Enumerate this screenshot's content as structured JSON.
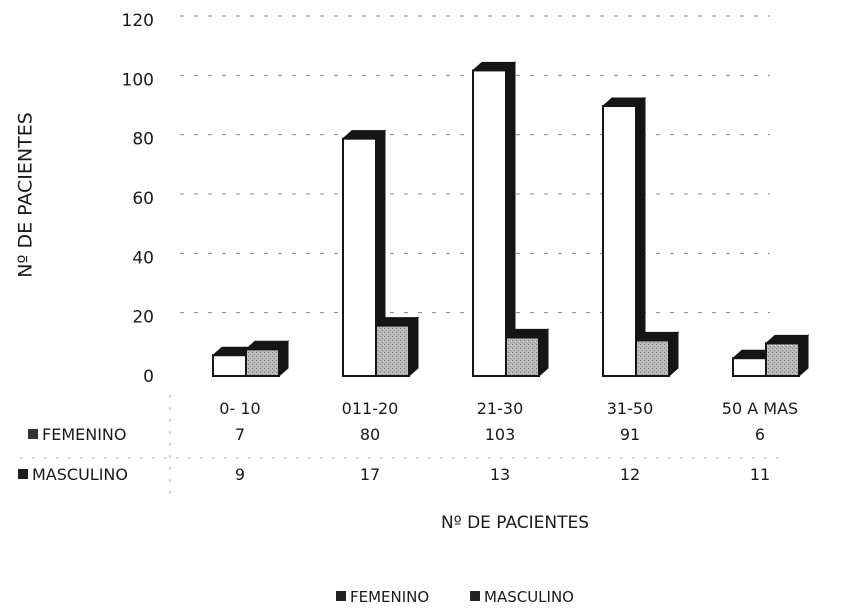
{
  "chart_data": {
    "type": "bar",
    "categories": [
      "0- 10",
      "011-20",
      "21-30",
      "31-50",
      "50 A MAS"
    ],
    "series": [
      {
        "name": "FEMENINO",
        "values": [
          7,
          80,
          103,
          91,
          6
        ]
      },
      {
        "name": "MASCULINO",
        "values": [
          9,
          17,
          13,
          12,
          11
        ]
      }
    ],
    "ylabel": "Nº DE PACIENTES",
    "xlabel": "Nº DE PACIENTES",
    "ylim": [
      0,
      120
    ],
    "yticks": [
      0,
      20,
      40,
      60,
      80,
      100,
      120
    ],
    "grid": true,
    "legend": "bottom",
    "data_table": true,
    "colors": {
      "femenino_fill": "#ffffff",
      "masculino_fill": "#b8b8b8",
      "depth": "#151515",
      "outline": "#151515"
    }
  }
}
